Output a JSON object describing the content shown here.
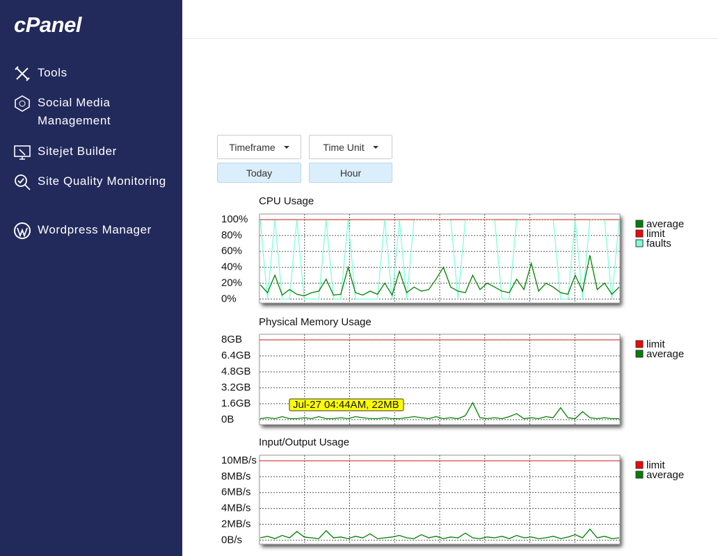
{
  "sidebar": {
    "logo": "cPanel",
    "items": [
      "Tools",
      "Social Media Management",
      "Sitejet Builder",
      "Site Quality Monitoring",
      "Wordpress Manager"
    ]
  },
  "controls": {
    "timeframe_label": "Timeframe",
    "time_unit_label": "Time Unit",
    "timeframe_value": "Today",
    "time_unit_value": "Hour"
  },
  "chart_data": [
    {
      "type": "line",
      "title": "CPU Usage",
      "ylim": [
        -5,
        107
      ],
      "yticks": [
        {
          "value": 0,
          "label": "0%"
        },
        {
          "value": 20,
          "label": "20%"
        },
        {
          "value": 40,
          "label": "40%"
        },
        {
          "value": 60,
          "label": "60%"
        },
        {
          "value": 80,
          "label": "80%"
        },
        {
          "value": 100,
          "label": "100%"
        }
      ],
      "grid": true,
      "series": [
        {
          "name": "average",
          "color": "#008000",
          "values": [
            18,
            8,
            30,
            5,
            12,
            6,
            4,
            8,
            10,
            25,
            5,
            6,
            40,
            8,
            5,
            10,
            6,
            20,
            5,
            35,
            8,
            15,
            10,
            12,
            25,
            40,
            15,
            10,
            8,
            30,
            12,
            20,
            15,
            10,
            8,
            25,
            12,
            45,
            10,
            20,
            15,
            8,
            6,
            30,
            10,
            55,
            12,
            20,
            6,
            15
          ]
        },
        {
          "name": "limit",
          "color": "#ff0000",
          "values": [
            100,
            100,
            100,
            100,
            100,
            100,
            100,
            100,
            100,
            100,
            100,
            100,
            100,
            100,
            100,
            100,
            100,
            100,
            100,
            100,
            100,
            100,
            100,
            100,
            100,
            100,
            100,
            100,
            100,
            100,
            100,
            100,
            100,
            100,
            100,
            100,
            100,
            100,
            100,
            100,
            100,
            100,
            100,
            100,
            100,
            100,
            100,
            100,
            100,
            100
          ]
        },
        {
          "name": "faults",
          "color": "#80ffdb",
          "values": [
            100,
            0,
            100,
            0,
            0,
            100,
            0,
            0,
            0,
            100,
            0,
            0,
            100,
            0,
            0,
            0,
            0,
            100,
            0,
            100,
            0,
            100,
            100,
            100,
            100,
            100,
            100,
            0,
            100,
            100,
            100,
            100,
            100,
            0,
            0,
            100,
            100,
            100,
            100,
            100,
            100,
            0,
            0,
            100,
            0,
            100,
            100,
            100,
            0,
            100
          ]
        }
      ]
    },
    {
      "type": "line",
      "title": "Physical Memory Usage",
      "ylim": [
        -0.5,
        8.56
      ],
      "yticks": [
        {
          "value": 0,
          "label": "0B"
        },
        {
          "value": 1.6,
          "label": "1.6GB"
        },
        {
          "value": 3.2,
          "label": "3.2GB"
        },
        {
          "value": 4.8,
          "label": "4.8GB"
        },
        {
          "value": 6.4,
          "label": "6.4GB"
        },
        {
          "value": 8,
          "label": "8GB"
        }
      ],
      "grid": true,
      "annotation": "Jul-27 04:44AM, 22MB",
      "series": [
        {
          "name": "limit",
          "color": "#ff0000",
          "values": [
            8,
            8,
            8,
            8,
            8,
            8,
            8,
            8,
            8,
            8,
            8,
            8,
            8,
            8,
            8,
            8,
            8,
            8,
            8,
            8,
            8,
            8,
            8,
            8,
            8,
            8,
            8,
            8,
            8,
            8,
            8,
            8,
            8,
            8,
            8,
            8,
            8,
            8,
            8,
            8,
            8,
            8,
            8,
            8,
            8,
            8,
            8,
            8,
            8,
            8
          ]
        },
        {
          "name": "average",
          "color": "#008000",
          "values": [
            0.1,
            0.2,
            0.1,
            0.3,
            0.1,
            0.1,
            0.2,
            0.1,
            0.3,
            0.1,
            0.1,
            0.2,
            0.1,
            0.3,
            0.2,
            0.1,
            0.1,
            0.2,
            0.1,
            0.1,
            0.2,
            0.3,
            0.2,
            0.1,
            0.3,
            0.1,
            0.2,
            0.1,
            0.4,
            1.7,
            0.2,
            0.1,
            0.2,
            0.1,
            0.3,
            0.6,
            0.1,
            0.2,
            0.1,
            0.3,
            0.2,
            1.2,
            0.2,
            0.1,
            0.8,
            0.2,
            0.1,
            0.2,
            0.1,
            0.1
          ]
        }
      ]
    },
    {
      "type": "line",
      "title": "Input/Output Usage",
      "ylim": [
        -0.5,
        10.7
      ],
      "yticks": [
        {
          "value": 0,
          "label": "0B/s"
        },
        {
          "value": 2,
          "label": "2MB/s"
        },
        {
          "value": 4,
          "label": "4MB/s"
        },
        {
          "value": 6,
          "label": "6MB/s"
        },
        {
          "value": 8,
          "label": "8MB/s"
        },
        {
          "value": 10,
          "label": "10MB/s"
        }
      ],
      "grid": true,
      "series": [
        {
          "name": "limit",
          "color": "#ff0000",
          "values": [
            10,
            10,
            10,
            10,
            10,
            10,
            10,
            10,
            10,
            10,
            10,
            10,
            10,
            10,
            10,
            10,
            10,
            10,
            10,
            10,
            10,
            10,
            10,
            10,
            10,
            10,
            10,
            10,
            10,
            10,
            10,
            10,
            10,
            10,
            10,
            10,
            10,
            10,
            10,
            10,
            10,
            10,
            10,
            10,
            10,
            10,
            10,
            10,
            10,
            10
          ]
        },
        {
          "name": "average",
          "color": "#008000",
          "values": [
            0.3,
            0.5,
            0.2,
            0.6,
            0.3,
            1.1,
            0.4,
            0.3,
            0.2,
            1.2,
            0.3,
            0.4,
            0.2,
            0.5,
            0.3,
            0.8,
            0.2,
            0.3,
            0.4,
            0.6,
            0.3,
            0.2,
            0.7,
            0.3,
            0.5,
            0.2,
            0.4,
            0.3,
            0.9,
            0.3,
            0.2,
            0.4,
            0.3,
            0.5,
            0.2,
            0.6,
            0.3,
            0.4,
            0.2,
            0.3,
            0.5,
            0.2,
            0.4,
            0.7,
            0.3,
            1.4,
            0.3,
            0.5,
            0.2,
            0.3
          ]
        }
      ]
    }
  ]
}
